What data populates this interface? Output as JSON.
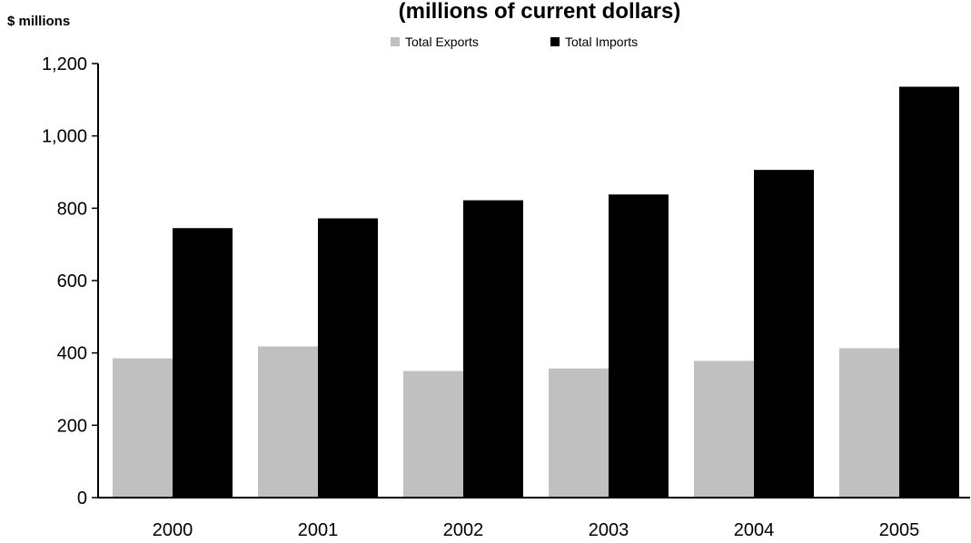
{
  "chart_data": {
    "type": "bar",
    "title": "(millions of current dollars)",
    "ylabel": "$ millions",
    "categories": [
      "2000",
      "2001",
      "2002",
      "2003",
      "2004",
      "2005"
    ],
    "series": [
      {
        "name": "Total Exports",
        "color": "#c0c0c0",
        "values": [
          385,
          418,
          350,
          357,
          378,
          413
        ]
      },
      {
        "name": "Total Imports",
        "color": "#000000",
        "values": [
          745,
          772,
          822,
          838,
          906,
          1136
        ]
      }
    ],
    "ylim": [
      0,
      1200
    ],
    "yticks": [
      0,
      200,
      400,
      600,
      800,
      1000,
      1200
    ],
    "ytick_labels": [
      "0",
      "200",
      "400",
      "600",
      "800",
      "1,000",
      "1,200"
    ],
    "grid": false,
    "legend": "top"
  }
}
